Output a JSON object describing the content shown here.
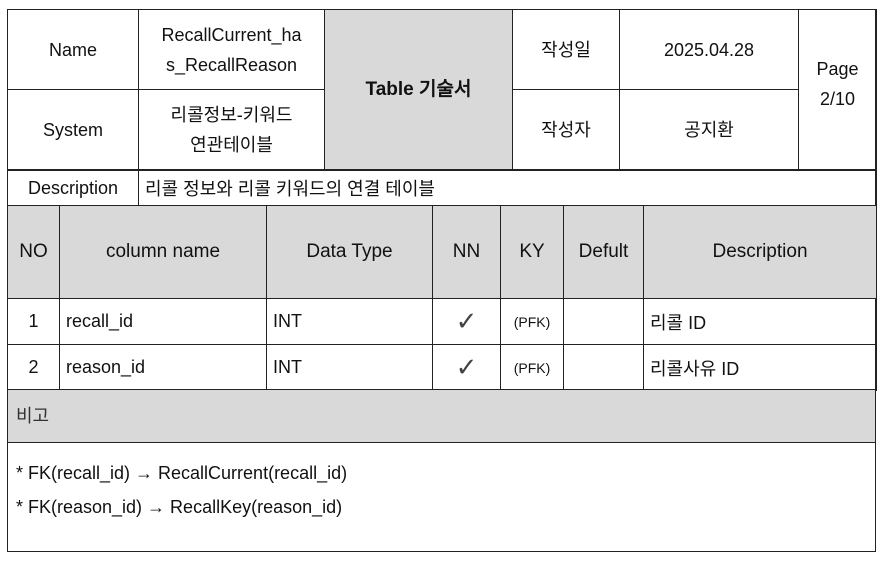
{
  "header": {
    "name_label": "Name",
    "name_value_1": "RecallCurrent_ha",
    "name_value_2": "s_RecallReason",
    "system_label": "System",
    "system_value_1": "리콜정보-키워드",
    "system_value_2": "연관테이블",
    "doc_title": "Table 기술서",
    "created_date_label": "작성일",
    "created_date": "2025.04.28",
    "author_label": "작성자",
    "author": "공지환",
    "page_label": "Page",
    "page_value": "2/10"
  },
  "description": {
    "label": "Description",
    "value": "리콜 정보와 리콜 키워드의 연결 테이블"
  },
  "columns_table": {
    "headers": [
      "NO",
      "column name",
      "Data Type",
      "NN",
      "KY",
      "Defult",
      "Description"
    ],
    "rows": [
      {
        "no": "1",
        "name": "recall_id",
        "type": "INT",
        "nn": "✓",
        "ky": "(PFK)",
        "default": "",
        "desc": "리콜 ID"
      },
      {
        "no": "2",
        "name": "reason_id",
        "type": "INT",
        "nn": "✓",
        "ky": "(PFK)",
        "default": "",
        "desc": "리콜사유 ID"
      }
    ]
  },
  "remarks": {
    "label": "비고",
    "lines": [
      "* FK(recall_id) → RecallCurrent(recall_id)",
      "* FK(reason_id) → RecallKey(reason_id)"
    ]
  }
}
